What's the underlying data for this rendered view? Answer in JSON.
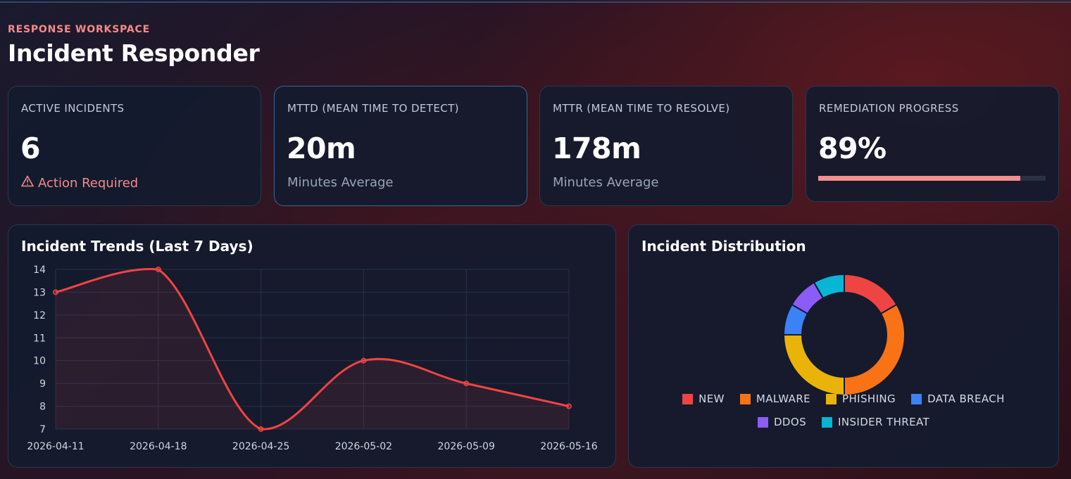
{
  "header": {
    "eyebrow": "RESPONSE WORKSPACE",
    "title": "Incident Responder"
  },
  "metrics": [
    {
      "label": "ACTIVE INCIDENTS",
      "value": "6",
      "sub": "Action Required"
    },
    {
      "label": "MTTD (MEAN TIME TO DETECT)",
      "value": "20m",
      "sub": "Minutes Average"
    },
    {
      "label": "MTTR (MEAN TIME TO RESOLVE)",
      "value": "178m",
      "sub": "Minutes Average"
    },
    {
      "label": "REMEDIATION PROGRESS",
      "value": "89%",
      "progress": 0.89
    }
  ],
  "trend_panel": {
    "title": "Incident Trends (Last 7 Days)"
  },
  "distribution_panel": {
    "title": "Incident Distribution"
  },
  "colors": {
    "accent": "#f58a8a",
    "line": "#ef4444",
    "progress": "#f58e8e"
  },
  "chart_data": [
    {
      "type": "line",
      "title": "Incident Trends (Last 7 Days)",
      "x": [
        "2026-04-11",
        "2026-04-18",
        "2026-04-25",
        "2026-05-02",
        "2026-05-09",
        "2026-05-16"
      ],
      "series": [
        {
          "values": [
            13,
            14,
            7,
            10,
            9,
            8
          ],
          "color": "#ef4444"
        }
      ],
      "ylim": [
        7,
        14
      ],
      "yticks": [
        7,
        8,
        9,
        10,
        11,
        12,
        13,
        14
      ],
      "grid": true,
      "fill": true,
      "smooth": true
    },
    {
      "type": "pie",
      "title": "Incident Distribution",
      "donut": true,
      "legend_position": "bottom",
      "categories": [
        "NEW",
        "MALWARE",
        "PHISHING",
        "DATA BREACH",
        "DDOS",
        "INSIDER THREAT"
      ],
      "values": [
        1,
        2,
        1.5,
        0.5,
        0.5,
        0.5
      ],
      "colors": [
        "#ef4444",
        "#f97316",
        "#eab308",
        "#3b82f6",
        "#8b5cf6",
        "#06b6d4"
      ]
    }
  ]
}
